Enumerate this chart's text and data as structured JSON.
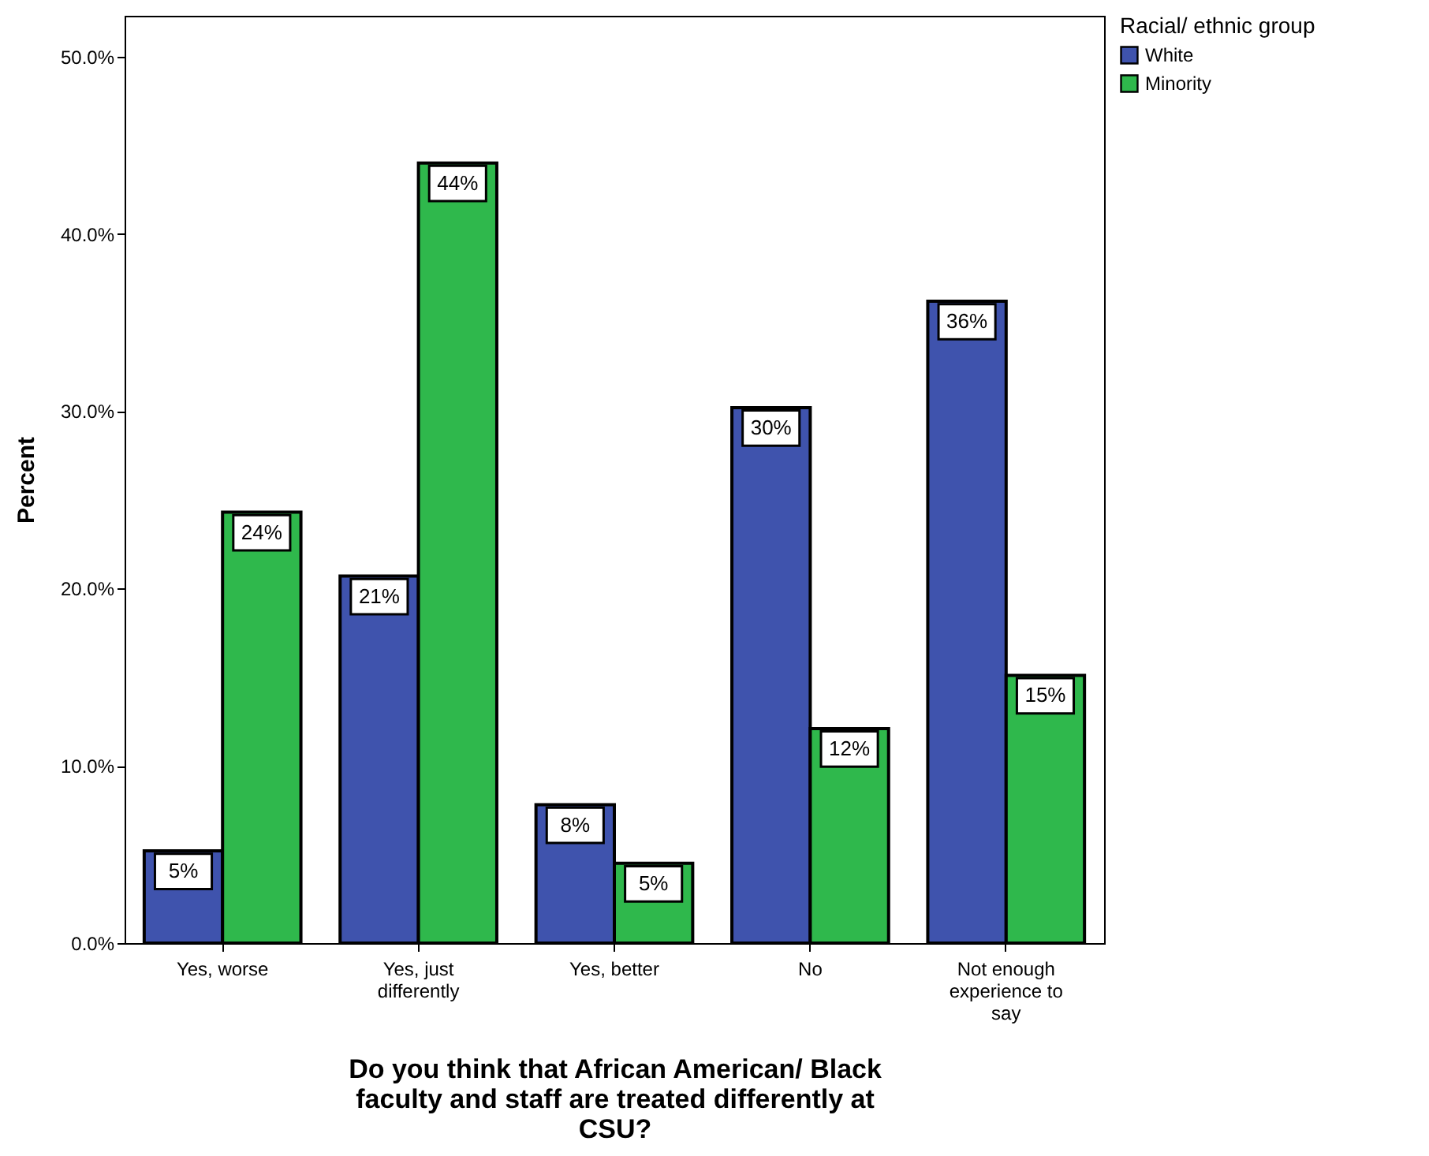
{
  "chart_data": {
    "type": "bar",
    "xlabel": "Do you think that African American/ Black faculty and staff are treated differently at CSU?",
    "ylabel": "Percent",
    "legend_title": "Racial/ ethnic group",
    "legend": "top right",
    "grid": false,
    "categories": [
      "Yes, worse",
      "Yes, just differently",
      "Yes, better",
      "No",
      "Not enough experience to say"
    ],
    "ylim": [
      0,
      52.3
    ],
    "yticks": [
      {
        "value": 0,
        "label": "0.0%"
      },
      {
        "value": 10,
        "label": "10.0%"
      },
      {
        "value": 20,
        "label": "20.0%"
      },
      {
        "value": 30,
        "label": "30.0%"
      },
      {
        "value": 40,
        "label": "40.0%"
      },
      {
        "value": 50,
        "label": "50.0%"
      }
    ],
    "series": [
      {
        "name": "White",
        "color": "#3f53ad",
        "values": [
          5.2,
          20.7,
          7.8,
          30.2,
          36.2
        ],
        "value_labels": [
          "5%",
          "21%",
          "8%",
          "30%",
          "36%"
        ]
      },
      {
        "name": "Minority",
        "color": "#2fb84c",
        "values": [
          24.3,
          44.0,
          4.5,
          12.1,
          15.1
        ],
        "value_labels": [
          "24%",
          "44%",
          "5%",
          "12%",
          "15%"
        ]
      }
    ]
  }
}
